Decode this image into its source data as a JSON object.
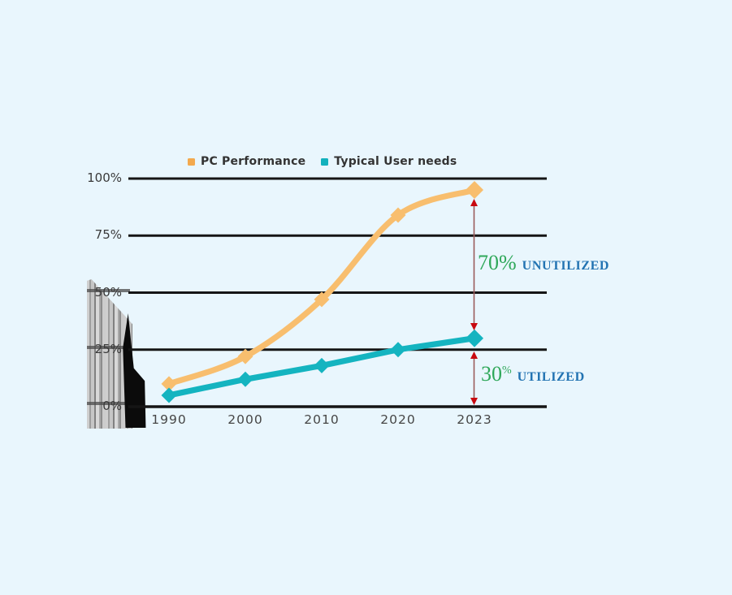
{
  "canvas": {
    "background": "#e9f6fd"
  },
  "legend": {
    "items": [
      {
        "label": "PC Performance",
        "color": "#f3a94e"
      },
      {
        "label": "Typical User needs",
        "color": "#12b1bd"
      }
    ]
  },
  "chart_data": {
    "type": "line",
    "categories": [
      "1990",
      "2000",
      "2010",
      "2020",
      "2023"
    ],
    "series": [
      {
        "name": "PC Performance",
        "color": "#f8be6e",
        "line_shape": "smooth",
        "values": [
          10,
          22,
          47,
          84,
          95
        ]
      },
      {
        "name": "Typical User needs",
        "color": "#14b4c0",
        "line_shape": "linear",
        "values": [
          5,
          12,
          18,
          25,
          30
        ]
      }
    ],
    "y_ticks": [
      {
        "value": 100,
        "label": "100%"
      },
      {
        "value": 75,
        "label": "75%"
      },
      {
        "value": 50,
        "label": "50%"
      },
      {
        "value": 25,
        "label": "25%"
      },
      {
        "value": 0,
        "label": "0%"
      }
    ],
    "ylim": [
      0,
      100
    ],
    "grid": true,
    "gridline_color": "#151515",
    "legend_position": "top"
  },
  "annotations": {
    "unutilized": {
      "value": "70%",
      "label": "UNUTILIZED",
      "value_color": "#2fa85a",
      "label_color": "#2273b2",
      "arrow_color": "#c8090f",
      "arrow_stem_color": "#9a5b5b"
    },
    "utilized": {
      "value": "30",
      "value_suffix": "%",
      "label": "UTILIZED",
      "value_color": "#2fa85a",
      "label_color": "#2273b2",
      "arrow_color": "#c8090f",
      "arrow_stem_color": "#9a5b5b"
    }
  }
}
